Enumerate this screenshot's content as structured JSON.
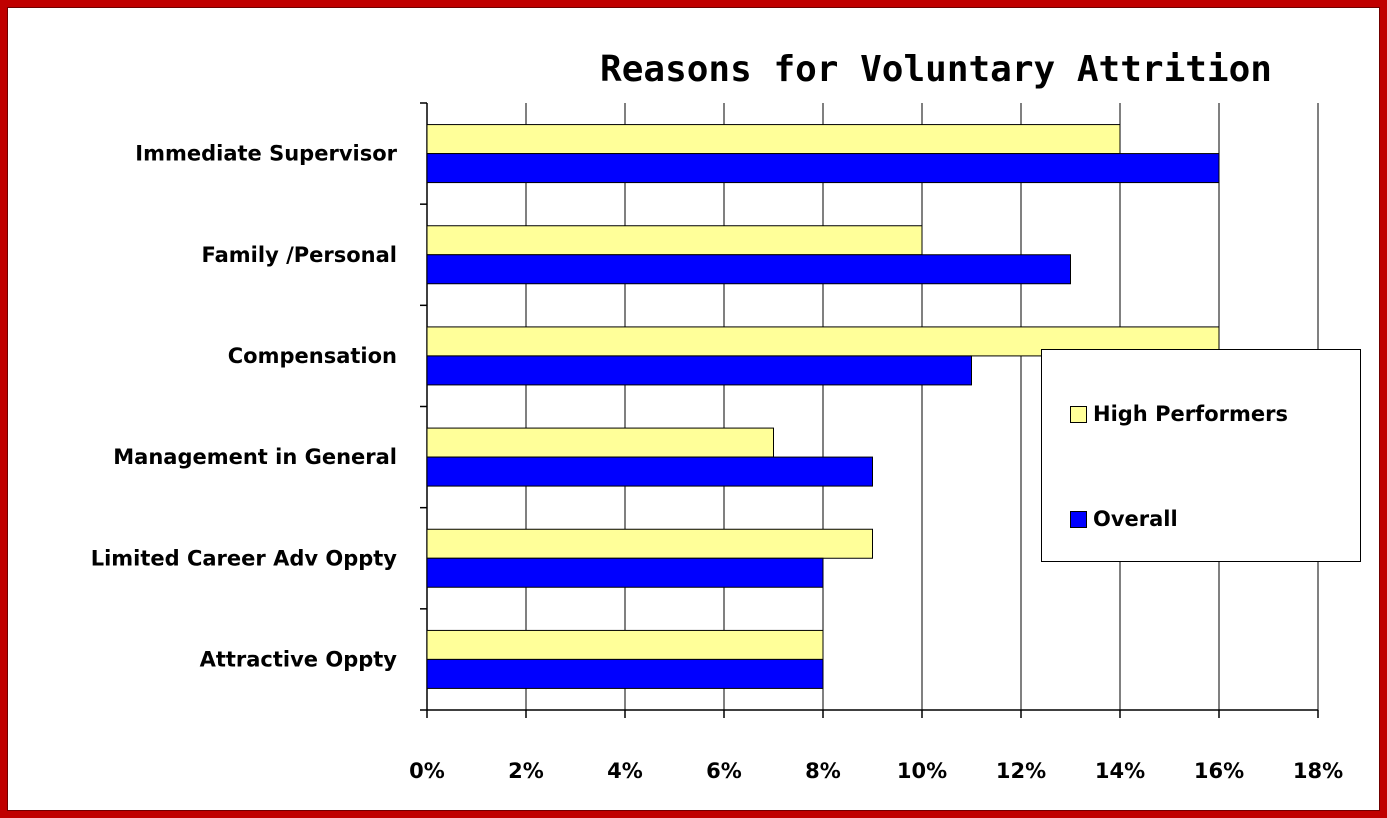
{
  "chart_data": {
    "type": "bar",
    "orientation": "horizontal",
    "title": "Reasons for Voluntary Attrition",
    "categories": [
      "Immediate Supervisor",
      "Family /Personal",
      "Compensation",
      "Management in General",
      "Limited Career Adv Oppty",
      "Attractive Oppty"
    ],
    "series": [
      {
        "name": "High Performers",
        "color": "#ffff99",
        "values": [
          14,
          10,
          16,
          7,
          9,
          8
        ]
      },
      {
        "name": "Overall",
        "color": "#0000ff",
        "values": [
          16,
          13,
          11,
          9,
          8,
          8
        ]
      }
    ],
    "xlim": [
      0,
      18
    ],
    "x_ticks": [
      "0%",
      "2%",
      "4%",
      "6%",
      "8%",
      "10%",
      "12%",
      "14%",
      "16%",
      "18%"
    ],
    "grid": "vertical",
    "legend": {
      "position": "right",
      "entries": [
        "High Performers",
        "Overall"
      ]
    }
  },
  "colors": {
    "frame": "#c00000",
    "background": "#ffffff"
  }
}
